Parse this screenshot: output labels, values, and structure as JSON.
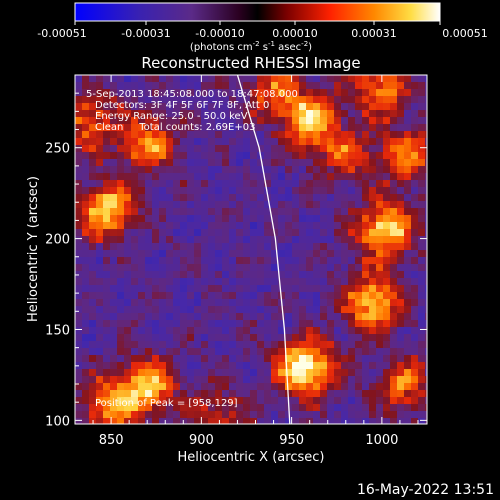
{
  "colorbar": {
    "tick_labels": [
      "-0.00051",
      "-0.00031",
      "-0.00010",
      "0.00010",
      "0.00031",
      "0.00051"
    ],
    "unit_label_main": "(photons cm",
    "unit_label_exp1": "-2",
    "unit_label_mid": " s",
    "unit_label_exp2": "-1",
    "unit_label_mid2": " asec",
    "unit_label_exp3": "-2",
    "unit_label_end": ")",
    "colors": [
      "#0000ff",
      "#4020a0",
      "#551a6f",
      "#3a0030",
      "#000000",
      "#8b0000",
      "#ff3300",
      "#ff9900",
      "#ffff66",
      "#ffffff"
    ]
  },
  "chart_data": {
    "type": "heatmap",
    "title": "Reconstructed RHESSI Image",
    "xlabel": "Heliocentric X (arcsec)",
    "ylabel": "Heliocentric Y (arcsec)",
    "xlim": [
      830,
      1025
    ],
    "ylim": [
      98,
      290
    ],
    "x_ticks": [
      850,
      900,
      950,
      1000
    ],
    "y_ticks": [
      100,
      150,
      200,
      250
    ],
    "x_tick_labels": [
      "850",
      "900",
      "950",
      "1000"
    ],
    "y_tick_labels": [
      "100",
      "150",
      "200",
      "250"
    ],
    "annotations": [
      "5-Sep-2013 18:45:08.000 to 18:47:08.000",
      "Detectors: 3F 4F 5F 6F 7F 8F, Att 0",
      "Energy Range: 25.0 - 50.0 keV",
      "Clean     Total counts: 2.69E+03"
    ],
    "peak_label": "Position of Peak = [958,129]",
    "peak": [
      958,
      129
    ],
    "limb_points": [
      [
        920,
        290
      ],
      [
        932,
        250
      ],
      [
        941,
        200
      ],
      [
        946,
        150
      ],
      [
        949,
        98
      ]
    ],
    "color_range": [
      -0.00051,
      0.00051
    ],
    "grid": false,
    "hotspots": [
      {
        "x": 958,
        "y": 129,
        "v": 1.0
      },
      {
        "x": 1002,
        "y": 205,
        "v": 0.85
      },
      {
        "x": 995,
        "y": 165,
        "v": 0.8
      },
      {
        "x": 1012,
        "y": 120,
        "v": 0.55
      },
      {
        "x": 848,
        "y": 215,
        "v": 0.8
      },
      {
        "x": 870,
        "y": 252,
        "v": 0.65
      },
      {
        "x": 960,
        "y": 265,
        "v": 0.75
      },
      {
        "x": 1000,
        "y": 283,
        "v": 0.65
      },
      {
        "x": 870,
        "y": 118,
        "v": 0.75
      },
      {
        "x": 848,
        "y": 108,
        "v": 0.6
      },
      {
        "x": 1015,
        "y": 245,
        "v": 0.55
      },
      {
        "x": 940,
        "y": 283,
        "v": 0.5
      },
      {
        "x": 980,
        "y": 245,
        "v": 0.45
      },
      {
        "x": 838,
        "y": 265,
        "v": 0.55
      },
      {
        "x": 910,
        "y": 103,
        "v": 0.4
      }
    ]
  },
  "footer": {
    "timestamp": "16-May-2022 13:51"
  }
}
